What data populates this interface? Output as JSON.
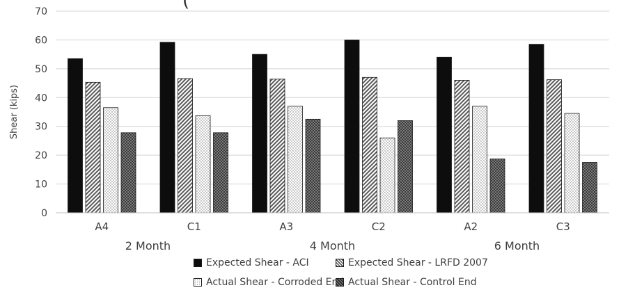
{
  "chart_data": {
    "type": "bar",
    "title_fragment": "(",
    "ylabel": "Shear (kips)",
    "xlabel": "",
    "ylim": [
      0,
      70
    ],
    "yticks": [
      0,
      10,
      20,
      30,
      40,
      50,
      60,
      70
    ],
    "grid": true,
    "legend_position": "bottom",
    "categories": [
      "A4",
      "C1",
      "A3",
      "C2",
      "A2",
      "C3"
    ],
    "groups": [
      {
        "label": "2 Month",
        "categories": [
          "A4",
          "C1"
        ]
      },
      {
        "label": "4 Month",
        "categories": [
          "A3",
          "C2"
        ]
      },
      {
        "label": "6 Month",
        "categories": [
          "A2",
          "C3"
        ]
      }
    ],
    "series": [
      {
        "name": "Expected Shear - ACI",
        "values": [
          53.5,
          59.2,
          55,
          60,
          54,
          58.5
        ],
        "fill": "#0d0d0d",
        "pattern": "solid"
      },
      {
        "name": "Expected Shear - LRFD 2007",
        "values": [
          45.3,
          46.6,
          46.4,
          47,
          46,
          46.2
        ],
        "fill": "#bdbdbd",
        "pattern": "diagonal"
      },
      {
        "name": "Actual Shear - Corroded End",
        "values": [
          36.5,
          33.7,
          37,
          26,
          37,
          34.5
        ],
        "fill": "#ffffff",
        "pattern": "dotted"
      },
      {
        "name": "Actual Shear - Control End",
        "values": [
          27.8,
          27.8,
          32.5,
          32,
          18.7,
          17.5
        ],
        "fill": "#3a3a3a",
        "pattern": "crosshatch"
      }
    ]
  }
}
